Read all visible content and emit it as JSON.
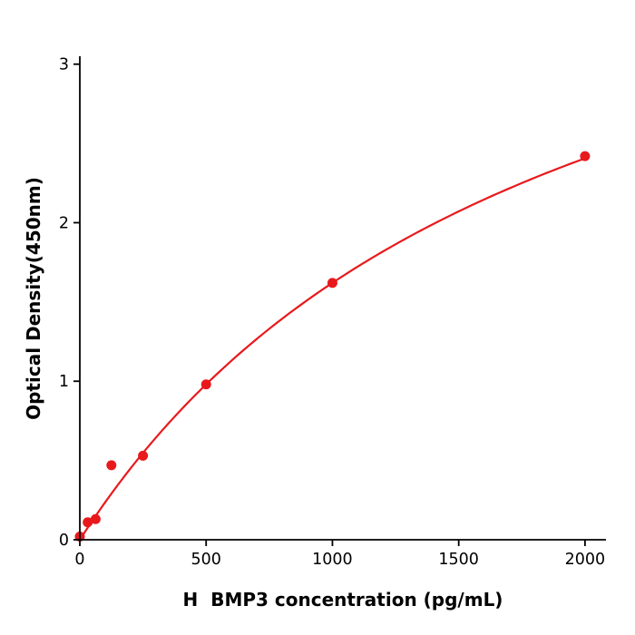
{
  "chart_data": {
    "type": "scatter",
    "title": "",
    "xlabel": "H  BMP3 concentration (pg/mL)",
    "ylabel": "Optical Density(450nm)",
    "x": [
      0,
      31.25,
      62.5,
      125,
      250,
      500,
      1000,
      2000
    ],
    "y": [
      0.02,
      0.11,
      0.13,
      0.47,
      0.53,
      0.98,
      1.62,
      2.42
    ],
    "xticks": [
      0,
      500,
      1000,
      1500,
      2000
    ],
    "yticks": [
      0,
      1,
      2,
      3
    ],
    "xlim": [
      0,
      2083
    ],
    "ylim": [
      0,
      3.05
    ],
    "fit": {
      "type": "michaelis_menten",
      "vmax": 4.67,
      "km": 1882,
      "x_start": 0,
      "x_end": 2000
    },
    "legend": "none",
    "grid": false,
    "point_color": "#e8191c",
    "line_color": "#e8191c",
    "axis_color": "#000000"
  }
}
